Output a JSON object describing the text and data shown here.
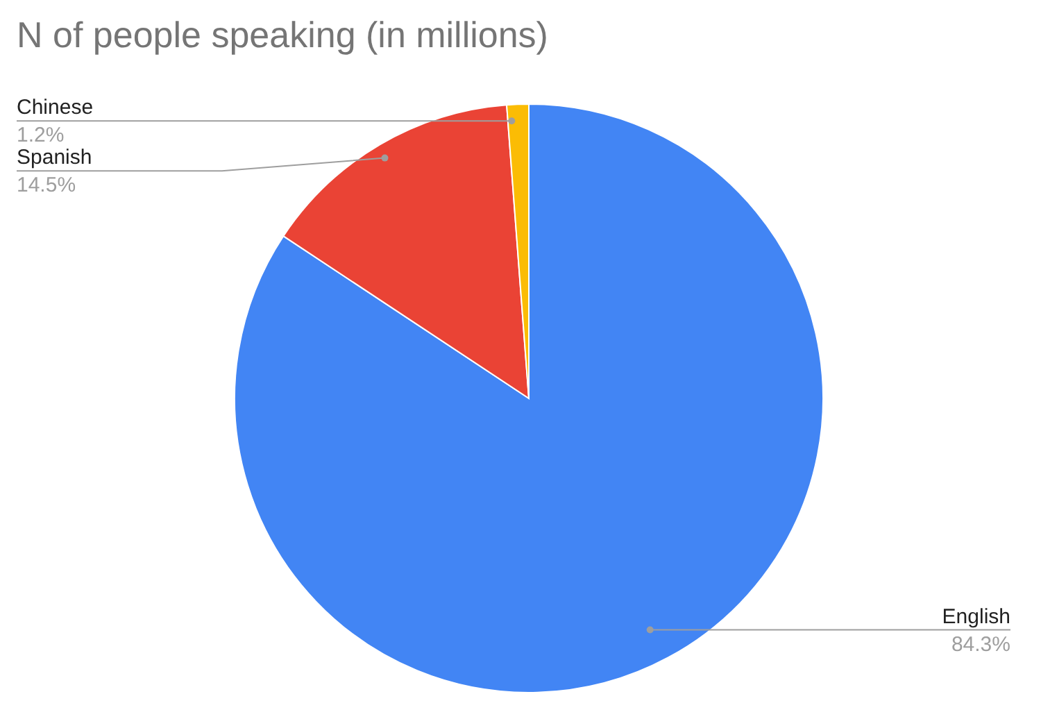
{
  "chart_data": {
    "type": "pie",
    "title": "N of people speaking (in millions)",
    "categories": [
      "English",
      "Spanish",
      "Chinese"
    ],
    "values": [
      84.3,
      14.5,
      1.2
    ],
    "value_labels": [
      "84.3%",
      "14.5%",
      "1.2%"
    ],
    "colors": [
      "#4285f4",
      "#ea4335",
      "#fbbc04"
    ]
  }
}
